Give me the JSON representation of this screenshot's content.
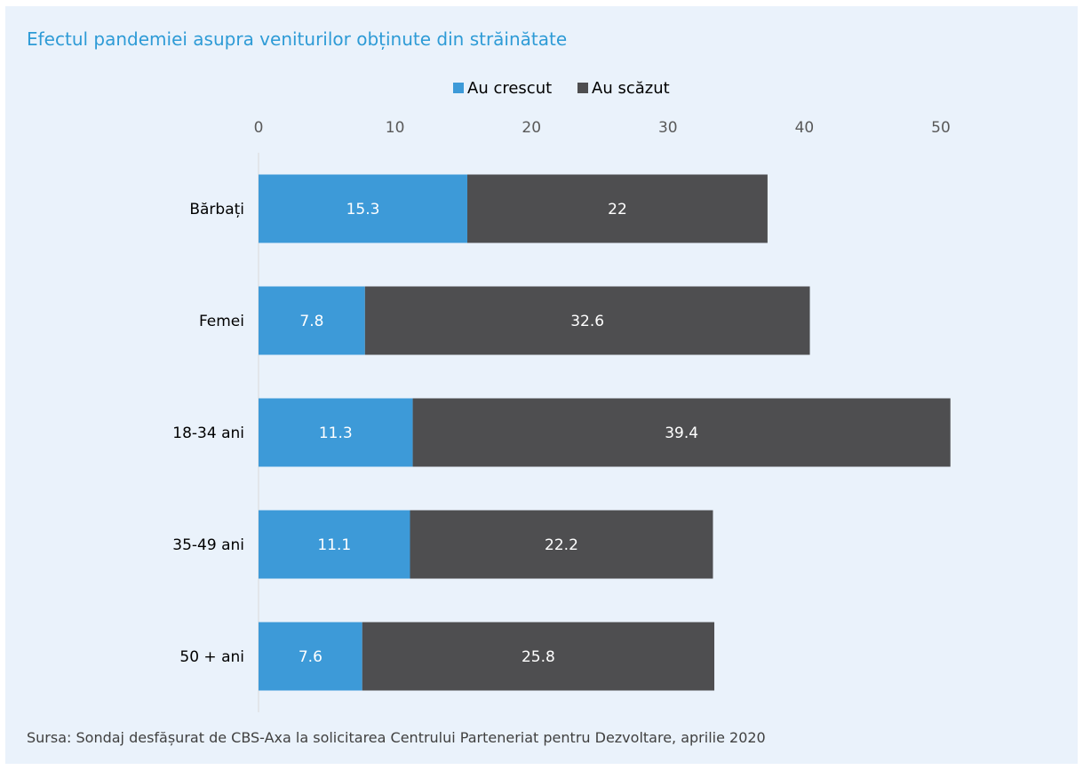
{
  "title": "Efectul pandemiei asupra veniturilor obținute din străinătate",
  "source": "Sursa: Sondaj desfășurat de CBS-Axa la solicitarea Centrului Parteneriat pentru Dezvoltare, aprilie 2020",
  "colors": {
    "background": "#eaf2fb",
    "title": "#2e9bd6",
    "series_increase": "#3d9ad8",
    "series_decrease": "#4e4e50"
  },
  "chart_data": {
    "type": "bar",
    "orientation": "horizontal",
    "stacked": true,
    "categories": [
      "Bărbați",
      "Femei",
      "18-34 ani",
      "35-49 ani",
      "50 + ani"
    ],
    "series": [
      {
        "name": "Au crescut",
        "color": "#3d9ad8",
        "values": [
          15.3,
          7.8,
          11.3,
          11.1,
          7.6
        ]
      },
      {
        "name": "Au scăzut",
        "color": "#4e4e50",
        "values": [
          22,
          32.6,
          39.4,
          22.2,
          25.8
        ]
      }
    ],
    "xlim": [
      0,
      50
    ],
    "xticks": [
      0,
      10,
      20,
      30,
      40,
      50
    ],
    "x_axis_position": "top",
    "legend_position": "top",
    "grid": false,
    "data_labels": true
  }
}
